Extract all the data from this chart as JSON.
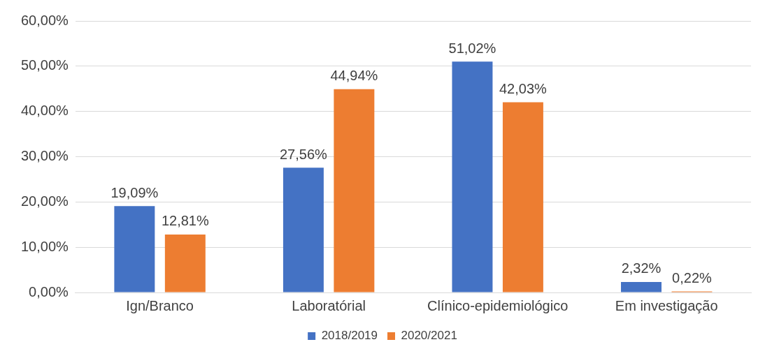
{
  "chart_data": {
    "type": "bar",
    "categories": [
      "Ign/Branco",
      "Laboratórial",
      "Clínico-epidemiológico",
      "Em investigação"
    ],
    "series": [
      {
        "name": "2018/2019",
        "color": "#4472c4",
        "values": [
          19.09,
          27.56,
          51.02,
          2.32
        ],
        "value_labels": [
          "19,09%",
          "27,56%",
          "51,02%",
          "2,32%"
        ]
      },
      {
        "name": "2020/2021",
        "color": "#ed7d31",
        "values": [
          12.81,
          44.94,
          42.03,
          0.22
        ],
        "value_labels": [
          "12,81%",
          "44,94%",
          "42,03%",
          "0,22%"
        ]
      }
    ],
    "ylim": [
      0,
      60
    ],
    "yticks": [
      {
        "value": 0,
        "label": "0,00%"
      },
      {
        "value": 10,
        "label": "10,00%"
      },
      {
        "value": 20,
        "label": "20,00%"
      },
      {
        "value": 30,
        "label": "30,00%"
      },
      {
        "value": 40,
        "label": "40,00%"
      },
      {
        "value": 50,
        "label": "50,00%"
      },
      {
        "value": 60,
        "label": "60,00%"
      }
    ],
    "grid": "y",
    "legend": "bottom"
  }
}
